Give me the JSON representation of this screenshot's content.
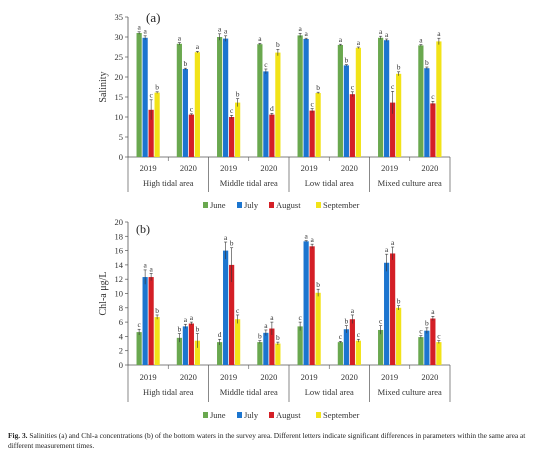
{
  "caption": {
    "label": "Fig. 3.",
    "text": "Salinities (a) and Chl-a concentrations (b) of the bottom waters in the survey area. Different letters indicate significant differences in parameters within the same area at different measurement times."
  },
  "colors": {
    "June": "#6aa84f",
    "July": "#1c75cf",
    "August": "#d41f26",
    "September": "#f2e318",
    "axis": "#555555",
    "error": "#333333"
  },
  "chart_data": [
    {
      "type": "bar",
      "panel_label": "(a)",
      "ylabel": "Salinity",
      "ylim": [
        0,
        35
      ],
      "yticks": [
        0,
        5,
        10,
        15,
        20,
        25,
        30,
        35
      ],
      "area_groups": [
        "High tidal area",
        "Middle tidal area",
        "Low tidal area",
        "Mixed culture area"
      ],
      "years": [
        "2019",
        "2020"
      ],
      "legend": {
        "position": "bottom",
        "entries": [
          "June",
          "July",
          "August",
          "September"
        ]
      },
      "grid": false,
      "clusters": [
        {
          "area": "High tidal area",
          "year": "2019",
          "values": [
            31.0,
            29.8,
            11.8,
            16.1
          ],
          "errors": [
            0.3,
            0.5,
            2.5,
            0.2
          ],
          "letters": [
            "a",
            "a",
            "c",
            "b"
          ]
        },
        {
          "area": "High tidal area",
          "year": "2020",
          "values": [
            28.3,
            22.0,
            10.6,
            26.2
          ],
          "errors": [
            0.3,
            0.2,
            0.2,
            0.2
          ],
          "letters": [
            "a",
            "b",
            "c",
            "a"
          ]
        },
        {
          "area": "Middle tidal area",
          "year": "2019",
          "values": [
            30.0,
            29.6,
            10.0,
            13.6
          ],
          "errors": [
            0.8,
            0.7,
            0.4,
            1.0
          ],
          "letters": [
            "a",
            "a",
            "c",
            "b"
          ]
        },
        {
          "area": "Middle tidal area",
          "year": "2020",
          "values": [
            28.2,
            21.4,
            10.6,
            26.1
          ],
          "errors": [
            0.2,
            0.6,
            0.3,
            0.8
          ],
          "letters": [
            "a",
            "c",
            "d",
            "b"
          ]
        },
        {
          "area": "Low tidal area",
          "year": "2019",
          "values": [
            30.4,
            29.5,
            11.6,
            16.0
          ],
          "errors": [
            0.5,
            0.2,
            0.5,
            0.2
          ],
          "letters": [
            "a",
            "a",
            "c",
            "b"
          ]
        },
        {
          "area": "Low tidal area",
          "year": "2020",
          "values": [
            28.0,
            22.9,
            15.7,
            27.3
          ],
          "errors": [
            0.2,
            0.2,
            0.6,
            0.2
          ],
          "letters": [
            "a",
            "b",
            "c",
            "a"
          ]
        },
        {
          "area": "Mixed culture area",
          "year": "2019",
          "values": [
            29.8,
            29.2,
            13.6,
            20.8
          ],
          "errors": [
            0.4,
            0.3,
            2.8,
            0.5
          ],
          "letters": [
            "a",
            "a",
            "c",
            "b"
          ]
        },
        {
          "area": "Mixed culture area",
          "year": "2020",
          "values": [
            27.9,
            22.2,
            13.4,
            28.9
          ],
          "errors": [
            0.2,
            0.3,
            0.5,
            0.8
          ],
          "letters": [
            "a",
            "b",
            "c",
            "a"
          ]
        }
      ]
    },
    {
      "type": "bar",
      "panel_label": "(b)",
      "ylabel": "Chl-a μg/L",
      "ylim": [
        0,
        20
      ],
      "yticks": [
        0,
        2,
        4,
        6,
        8,
        10,
        12,
        14,
        16,
        18,
        20
      ],
      "area_groups": [
        "High tidal area",
        "Middle tidal area",
        "Low tidal area",
        "Mixed culture area"
      ],
      "years": [
        "2019",
        "2020"
      ],
      "legend": {
        "position": "bottom",
        "entries": [
          "June",
          "July",
          "August",
          "September"
        ]
      },
      "grid": false,
      "clusters": [
        {
          "area": "High tidal area",
          "year": "2019",
          "values": [
            4.6,
            12.3,
            12.3,
            6.7
          ],
          "errors": [
            0.4,
            1.0,
            0.5,
            0.3
          ],
          "letters": [
            "c",
            "a",
            "a",
            "b"
          ]
        },
        {
          "area": "High tidal area",
          "year": "2020",
          "values": [
            3.8,
            5.4,
            5.8,
            3.4
          ],
          "errors": [
            0.6,
            0.3,
            0.2,
            1.0
          ],
          "letters": [
            "b",
            "a",
            "a",
            "b"
          ]
        },
        {
          "area": "Middle tidal area",
          "year": "2019",
          "values": [
            3.2,
            16.0,
            14.0,
            6.4
          ],
          "errors": [
            0.4,
            1.2,
            2.4,
            0.6
          ],
          "letters": [
            "d",
            "a",
            "b",
            "c"
          ]
        },
        {
          "area": "Middle tidal area",
          "year": "2020",
          "values": [
            3.2,
            4.5,
            5.1,
            3.0
          ],
          "errors": [
            0.2,
            0.4,
            0.9,
            0.2
          ],
          "letters": [
            "b",
            "a",
            "a",
            "b"
          ]
        },
        {
          "area": "Low tidal area",
          "year": "2019",
          "values": [
            5.4,
            17.3,
            16.6,
            10.1
          ],
          "errors": [
            0.6,
            0.1,
            0.3,
            0.5
          ],
          "letters": [
            "c",
            "a",
            "a",
            "b"
          ]
        },
        {
          "area": "Low tidal area",
          "year": "2020",
          "values": [
            3.2,
            5.0,
            6.4,
            3.4
          ],
          "errors": [
            0.1,
            0.5,
            0.6,
            0.2
          ],
          "letters": [
            "c",
            "b",
            "a",
            "c"
          ]
        },
        {
          "area": "Mixed culture area",
          "year": "2019",
          "values": [
            4.9,
            14.3,
            15.6,
            8.0
          ],
          "errors": [
            0.6,
            1.2,
            0.9,
            0.3
          ],
          "letters": [
            "c",
            "a",
            "a",
            "b"
          ]
        },
        {
          "area": "Mixed culture area",
          "year": "2020",
          "values": [
            3.9,
            4.8,
            6.5,
            3.2
          ],
          "errors": [
            0.2,
            0.4,
            0.3,
            0.2
          ],
          "letters": [
            "c",
            "b",
            "a",
            "c"
          ]
        }
      ]
    }
  ]
}
